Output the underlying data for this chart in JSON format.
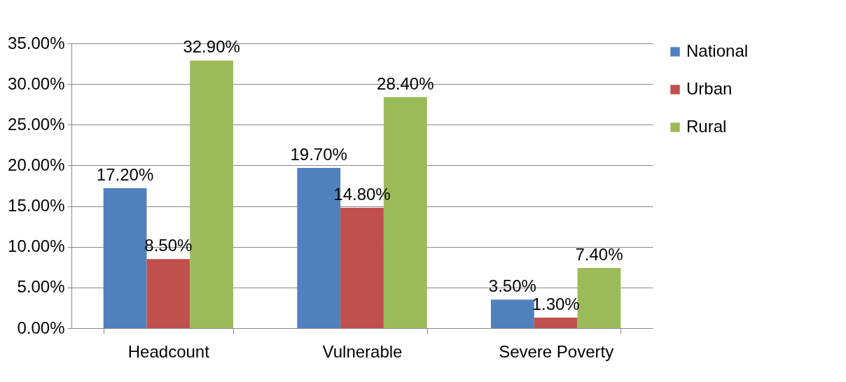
{
  "chart_data": {
    "type": "bar",
    "categories": [
      "Headcount",
      "Vulnerable",
      "Severe Poverty"
    ],
    "series": [
      {
        "name": "National",
        "color": "#4f81bd",
        "values": [
          17.2,
          19.7,
          3.5
        ],
        "value_labels": [
          "17.20%",
          "19.70%",
          "3.50%"
        ]
      },
      {
        "name": "Urban",
        "color": "#c0504d",
        "values": [
          8.5,
          14.8,
          1.3
        ],
        "value_labels": [
          "8.50%",
          "14.80%",
          "1.30%"
        ]
      },
      {
        "name": "Rural",
        "color": "#9bbb59",
        "values": [
          32.9,
          28.4,
          7.4
        ],
        "value_labels": [
          "32.90%",
          "28.40%",
          "7.40%"
        ]
      }
    ],
    "ylim": [
      0,
      35
    ],
    "yticks": [
      {
        "value": 0,
        "label": "0.00%"
      },
      {
        "value": 5,
        "label": "5.00%"
      },
      {
        "value": 10,
        "label": "10.00%"
      },
      {
        "value": 15,
        "label": "15.00%"
      },
      {
        "value": 20,
        "label": "20.00%"
      },
      {
        "value": 25,
        "label": "25.00%"
      },
      {
        "value": 30,
        "label": "30.00%"
      },
      {
        "value": 35,
        "label": "35.00%"
      }
    ],
    "grid": "y",
    "legend": "right"
  }
}
